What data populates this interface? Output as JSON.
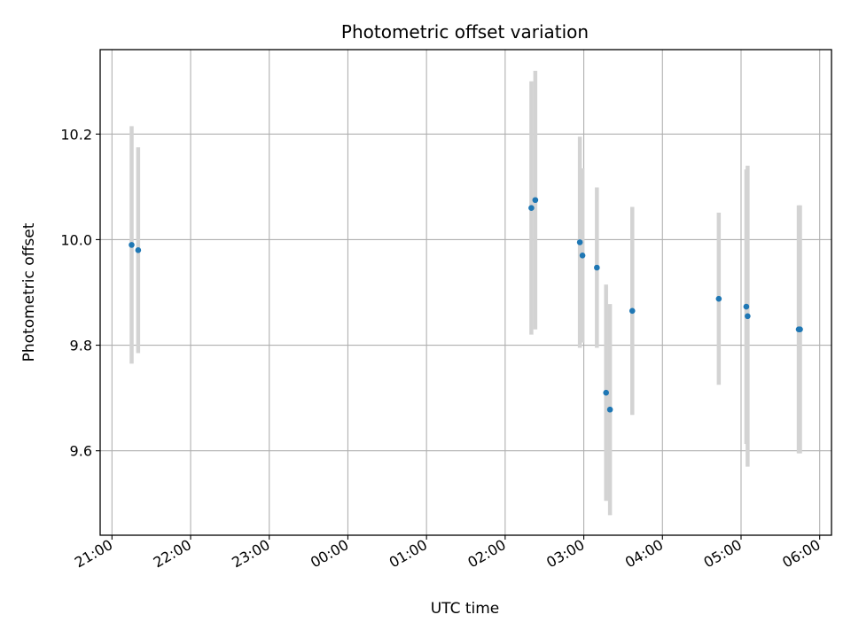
{
  "chart_data": {
    "type": "scatter",
    "title": "Photometric offset variation",
    "xlabel": "UTC time",
    "ylabel": "Photometric offset",
    "x_ticks": [
      "21:00",
      "22:00",
      "23:00",
      "00:00",
      "01:00",
      "02:00",
      "03:00",
      "04:00",
      "05:00",
      "06:00"
    ],
    "x_tick_hours": [
      0,
      1,
      2,
      3,
      4,
      5,
      6,
      7,
      8,
      9
    ],
    "x_start_label": "21:00",
    "xlim_hours": [
      -0.15,
      9.15
    ],
    "y_ticks": [
      "9.6",
      "9.8",
      "10.0",
      "10.2"
    ],
    "y_tick_values": [
      9.6,
      9.8,
      10.0,
      10.2
    ],
    "ylim": [
      9.44,
      10.36
    ],
    "grid": true,
    "marker_color": "#1f77b4",
    "errorbar_color": "#d3d3d3",
    "points": [
      {
        "time": "21:15",
        "y": 9.99,
        "err": 0.225
      },
      {
        "time": "21:20",
        "y": 9.98,
        "err": 0.195
      },
      {
        "time": "02:20",
        "y": 10.06,
        "err": 0.24
      },
      {
        "time": "02:23",
        "y": 10.075,
        "err": 0.245
      },
      {
        "time": "02:57",
        "y": 9.995,
        "err": 0.2
      },
      {
        "time": "02:59",
        "y": 9.97,
        "err": 0.165
      },
      {
        "time": "03:10",
        "y": 9.947,
        "err": 0.152
      },
      {
        "time": "03:17",
        "y": 9.71,
        "err": 0.205
      },
      {
        "time": "03:20",
        "y": 9.678,
        "err": 0.2
      },
      {
        "time": "03:37",
        "y": 9.865,
        "err": 0.197
      },
      {
        "time": "04:43",
        "y": 9.888,
        "err": 0.163
      },
      {
        "time": "05:04",
        "y": 9.873,
        "err": 0.26
      },
      {
        "time": "05:05",
        "y": 9.855,
        "err": 0.285
      },
      {
        "time": "05:44",
        "y": 9.83,
        "err": 0.235
      },
      {
        "time": "05:45",
        "y": 9.83,
        "err": 0.235
      }
    ]
  }
}
